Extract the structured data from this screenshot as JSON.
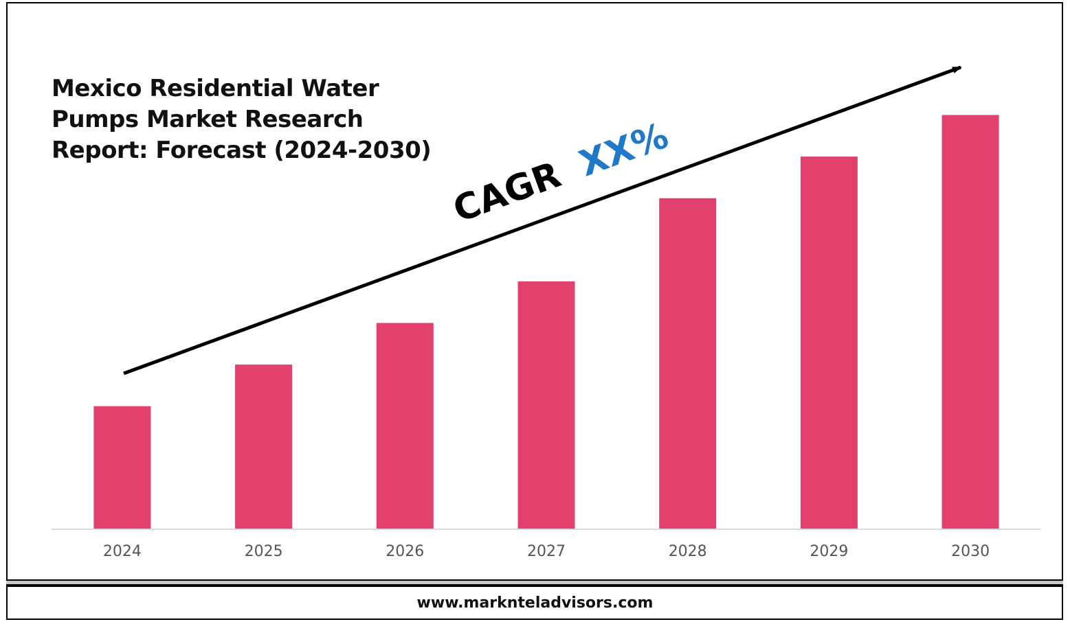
{
  "chart_data": {
    "type": "bar",
    "title": "Mexico Residential Water Pumps Market Research Report: Forecast (2024-2030)",
    "title_lines": [
      "Mexico Residential Water",
      "Pumps Market Research",
      "Report: Forecast (2024-2030)"
    ],
    "categories": [
      "2024",
      "2025",
      "2026",
      "2027",
      "2028",
      "2029",
      "2030"
    ],
    "values": [
      1.0,
      1.34,
      1.68,
      2.02,
      2.7,
      3.04,
      3.38
    ],
    "ylim": [
      0,
      3.45
    ],
    "grid": false,
    "bar_color": "#e2406d",
    "annotation": {
      "label": "CAGR",
      "value": "XX%",
      "label_color": "#000000",
      "value_color": "#1f78c8",
      "arrow": "trend-up"
    }
  },
  "footer": {
    "url": "www.marknteladvisors.com"
  }
}
